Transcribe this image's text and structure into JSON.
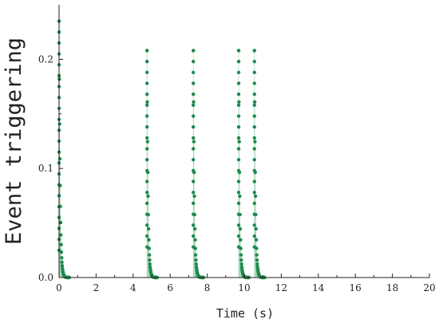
{
  "chart_data": {
    "type": "scatter",
    "title": "",
    "xlabel": "Time (s)",
    "ylabel": "Event triggering",
    "xlim": [
      0,
      20
    ],
    "ylim": [
      0,
      0.25
    ],
    "xticks": [
      0,
      2,
      4,
      6,
      8,
      10,
      12,
      14,
      16,
      18,
      20
    ],
    "yticks": [
      0.0,
      0.1,
      0.2
    ],
    "ytick_labels": [
      "0.0",
      "0.1",
      "0.2"
    ],
    "grid": false,
    "legend": "none",
    "marker_color": "#1e8a4c",
    "stem_color": "#a9d8bb",
    "bursts": [
      {
        "t0": 0.0,
        "peak": 0.235
      },
      {
        "t0": 4.75,
        "peak": 0.208
      },
      {
        "t0": 7.25,
        "peak": 0.208
      },
      {
        "t0": 9.7,
        "peak": 0.208
      },
      {
        "t0": 10.55,
        "peak": 0.208
      }
    ],
    "burst_duration": 0.55,
    "burst_decay": 0.055,
    "burst_points": 40
  }
}
